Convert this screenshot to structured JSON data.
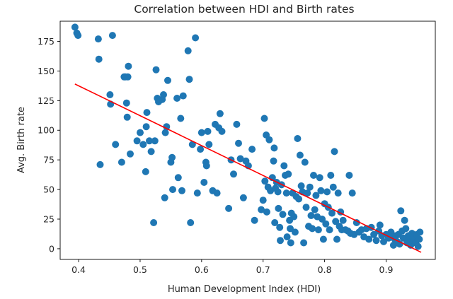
{
  "chart_data": {
    "type": "scatter",
    "title": "Correlation between HDI and Birth rates",
    "xlabel": "Human Development Index (HDI)",
    "ylabel": "Avg. Birth rate",
    "xlim": [
      0.37,
      0.98
    ],
    "ylim": [
      -9,
      192
    ],
    "xticks": [
      0.4,
      0.5,
      0.6,
      0.7,
      0.8,
      0.9
    ],
    "xtick_labels": [
      "0.4",
      "0.5",
      "0.6",
      "0.7",
      "0.8",
      "0.9"
    ],
    "yticks": [
      0,
      25,
      50,
      75,
      100,
      125,
      150,
      175
    ],
    "ytick_labels": [
      "0",
      "25",
      "50",
      "75",
      "100",
      "125",
      "150",
      "175"
    ],
    "grid": false,
    "point_color": "#1f77b4",
    "line_color": "#ff0000",
    "trend_line": {
      "x": [
        0.394,
        0.957
      ],
      "y": [
        139,
        -3
      ]
    },
    "points": [
      [
        0.394,
        187
      ],
      [
        0.397,
        182
      ],
      [
        0.399,
        180
      ],
      [
        0.432,
        177
      ],
      [
        0.433,
        160
      ],
      [
        0.435,
        71
      ],
      [
        0.451,
        130
      ],
      [
        0.452,
        122
      ],
      [
        0.455,
        180
      ],
      [
        0.46,
        88
      ],
      [
        0.47,
        73
      ],
      [
        0.474,
        145
      ],
      [
        0.476,
        145
      ],
      [
        0.478,
        123
      ],
      [
        0.479,
        111
      ],
      [
        0.48,
        145
      ],
      [
        0.481,
        154
      ],
      [
        0.484,
        80
      ],
      [
        0.495,
        91
      ],
      [
        0.5,
        98
      ],
      [
        0.505,
        88
      ],
      [
        0.509,
        65
      ],
      [
        0.51,
        103
      ],
      [
        0.511,
        115
      ],
      [
        0.515,
        91
      ],
      [
        0.518,
        82
      ],
      [
        0.522,
        22
      ],
      [
        0.524,
        91
      ],
      [
        0.526,
        151
      ],
      [
        0.528,
        127
      ],
      [
        0.53,
        124
      ],
      [
        0.536,
        126
      ],
      [
        0.538,
        130
      ],
      [
        0.54,
        43
      ],
      [
        0.541,
        98
      ],
      [
        0.543,
        103
      ],
      [
        0.545,
        142
      ],
      [
        0.55,
        73
      ],
      [
        0.552,
        77
      ],
      [
        0.553,
        50
      ],
      [
        0.56,
        127
      ],
      [
        0.562,
        60
      ],
      [
        0.566,
        110
      ],
      [
        0.568,
        49
      ],
      [
        0.57,
        129
      ],
      [
        0.578,
        167
      ],
      [
        0.58,
        143
      ],
      [
        0.582,
        22
      ],
      [
        0.585,
        88
      ],
      [
        0.59,
        178
      ],
      [
        0.593,
        47
      ],
      [
        0.598,
        84
      ],
      [
        0.6,
        98
      ],
      [
        0.604,
        56
      ],
      [
        0.607,
        73
      ],
      [
        0.608,
        70
      ],
      [
        0.61,
        99
      ],
      [
        0.612,
        88
      ],
      [
        0.618,
        49
      ],
      [
        0.622,
        105
      ],
      [
        0.625,
        47
      ],
      [
        0.628,
        102
      ],
      [
        0.63,
        114
      ],
      [
        0.633,
        99
      ],
      [
        0.644,
        34
      ],
      [
        0.648,
        75
      ],
      [
        0.652,
        63
      ],
      [
        0.657,
        105
      ],
      [
        0.66,
        89
      ],
      [
        0.663,
        76
      ],
      [
        0.668,
        43
      ],
      [
        0.672,
        74
      ],
      [
        0.676,
        70
      ],
      [
        0.682,
        84
      ],
      [
        0.686,
        24
      ],
      [
        0.697,
        33
      ],
      [
        0.7,
        41
      ],
      [
        0.702,
        110
      ],
      [
        0.703,
        57
      ],
      [
        0.705,
        96
      ],
      [
        0.706,
        31
      ],
      [
        0.708,
        52
      ],
      [
        0.71,
        92
      ],
      [
        0.712,
        49
      ],
      [
        0.715,
        60
      ],
      [
        0.717,
        74
      ],
      [
        0.718,
        85
      ],
      [
        0.719,
        22
      ],
      [
        0.72,
        51
      ],
      [
        0.722,
        56
      ],
      [
        0.724,
        48
      ],
      [
        0.725,
        34
      ],
      [
        0.727,
        18
      ],
      [
        0.728,
        7
      ],
      [
        0.73,
        54
      ],
      [
        0.732,
        29
      ],
      [
        0.734,
        70
      ],
      [
        0.736,
        62
      ],
      [
        0.738,
        47
      ],
      [
        0.739,
        10
      ],
      [
        0.741,
        63
      ],
      [
        0.743,
        24
      ],
      [
        0.744,
        17
      ],
      [
        0.745,
        5
      ],
      [
        0.746,
        30
      ],
      [
        0.748,
        47
      ],
      [
        0.75,
        27
      ],
      [
        0.752,
        14
      ],
      [
        0.754,
        44
      ],
      [
        0.756,
        93
      ],
      [
        0.758,
        42
      ],
      [
        0.76,
        79
      ],
      [
        0.762,
        53
      ],
      [
        0.764,
        48
      ],
      [
        0.766,
        5
      ],
      [
        0.768,
        73
      ],
      [
        0.77,
        35
      ],
      [
        0.772,
        47
      ],
      [
        0.774,
        19
      ],
      [
        0.776,
        52
      ],
      [
        0.778,
        28
      ],
      [
        0.78,
        17
      ],
      [
        0.782,
        62
      ],
      [
        0.784,
        33
      ],
      [
        0.786,
        45
      ],
      [
        0.788,
        27
      ],
      [
        0.79,
        16
      ],
      [
        0.792,
        60
      ],
      [
        0.794,
        49
      ],
      [
        0.796,
        25
      ],
      [
        0.798,
        8
      ],
      [
        0.8,
        38
      ],
      [
        0.802,
        21
      ],
      [
        0.804,
        48
      ],
      [
        0.806,
        35
      ],
      [
        0.808,
        16
      ],
      [
        0.81,
        62
      ],
      [
        0.812,
        30
      ],
      [
        0.814,
        52
      ],
      [
        0.816,
        82
      ],
      [
        0.818,
        23
      ],
      [
        0.82,
        8
      ],
      [
        0.822,
        47
      ],
      [
        0.824,
        19
      ],
      [
        0.826,
        31
      ],
      [
        0.828,
        16
      ],
      [
        0.83,
        24
      ],
      [
        0.834,
        16
      ],
      [
        0.838,
        15
      ],
      [
        0.84,
        62
      ],
      [
        0.842,
        13
      ],
      [
        0.845,
        47
      ],
      [
        0.848,
        12
      ],
      [
        0.852,
        22
      ],
      [
        0.856,
        14
      ],
      [
        0.86,
        16
      ],
      [
        0.864,
        10
      ],
      [
        0.868,
        17
      ],
      [
        0.872,
        8
      ],
      [
        0.876,
        18
      ],
      [
        0.88,
        12
      ],
      [
        0.884,
        7
      ],
      [
        0.888,
        15
      ],
      [
        0.89,
        20
      ],
      [
        0.893,
        11
      ],
      [
        0.896,
        6
      ],
      [
        0.9,
        12
      ],
      [
        0.904,
        9
      ],
      [
        0.908,
        14
      ],
      [
        0.91,
        10
      ],
      [
        0.912,
        3
      ],
      [
        0.914,
        8
      ],
      [
        0.916,
        11
      ],
      [
        0.918,
        6
      ],
      [
        0.92,
        12
      ],
      [
        0.922,
        4
      ],
      [
        0.924,
        32
      ],
      [
        0.926,
        15
      ],
      [
        0.928,
        9
      ],
      [
        0.93,
        24
      ],
      [
        0.932,
        17
      ],
      [
        0.934,
        5
      ],
      [
        0.936,
        11
      ],
      [
        0.938,
        8
      ],
      [
        0.94,
        3
      ],
      [
        0.942,
        13
      ],
      [
        0.944,
        7
      ],
      [
        0.946,
        10
      ],
      [
        0.948,
        5
      ],
      [
        0.95,
        12
      ],
      [
        0.952,
        2
      ],
      [
        0.954,
        8
      ],
      [
        0.955,
        14
      ]
    ]
  }
}
